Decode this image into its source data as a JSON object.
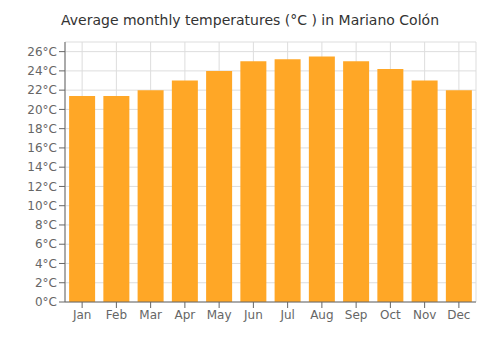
{
  "chart_data": {
    "type": "bar",
    "title": "Average monthly temperatures (°C ) in Mariano Colón",
    "categories": [
      "Jan",
      "Feb",
      "Mar",
      "Apr",
      "May",
      "Jun",
      "Jul",
      "Aug",
      "Sep",
      "Oct",
      "Nov",
      "Dec"
    ],
    "values": [
      21.4,
      21.4,
      22.0,
      23.0,
      24.0,
      25.0,
      25.2,
      25.5,
      25.0,
      24.2,
      23.0,
      22.0
    ],
    "color": "#FFA726",
    "ylim": [
      0,
      27
    ],
    "yticks": [
      {
        "value": 0,
        "label": "0°C"
      },
      {
        "value": 2,
        "label": "2°C"
      },
      {
        "value": 4,
        "label": "4°C"
      },
      {
        "value": 6,
        "label": "6°C"
      },
      {
        "value": 8,
        "label": "8°C"
      },
      {
        "value": 10,
        "label": "10°C"
      },
      {
        "value": 12,
        "label": "12°C"
      },
      {
        "value": 14,
        "label": "14°C"
      },
      {
        "value": 16,
        "label": "16°C"
      },
      {
        "value": 18,
        "label": "18°C"
      },
      {
        "value": 20,
        "label": "20°C"
      },
      {
        "value": 22,
        "label": "22°C"
      },
      {
        "value": 24,
        "label": "24°C"
      },
      {
        "value": 26,
        "label": "26°C"
      }
    ],
    "grid": true
  }
}
